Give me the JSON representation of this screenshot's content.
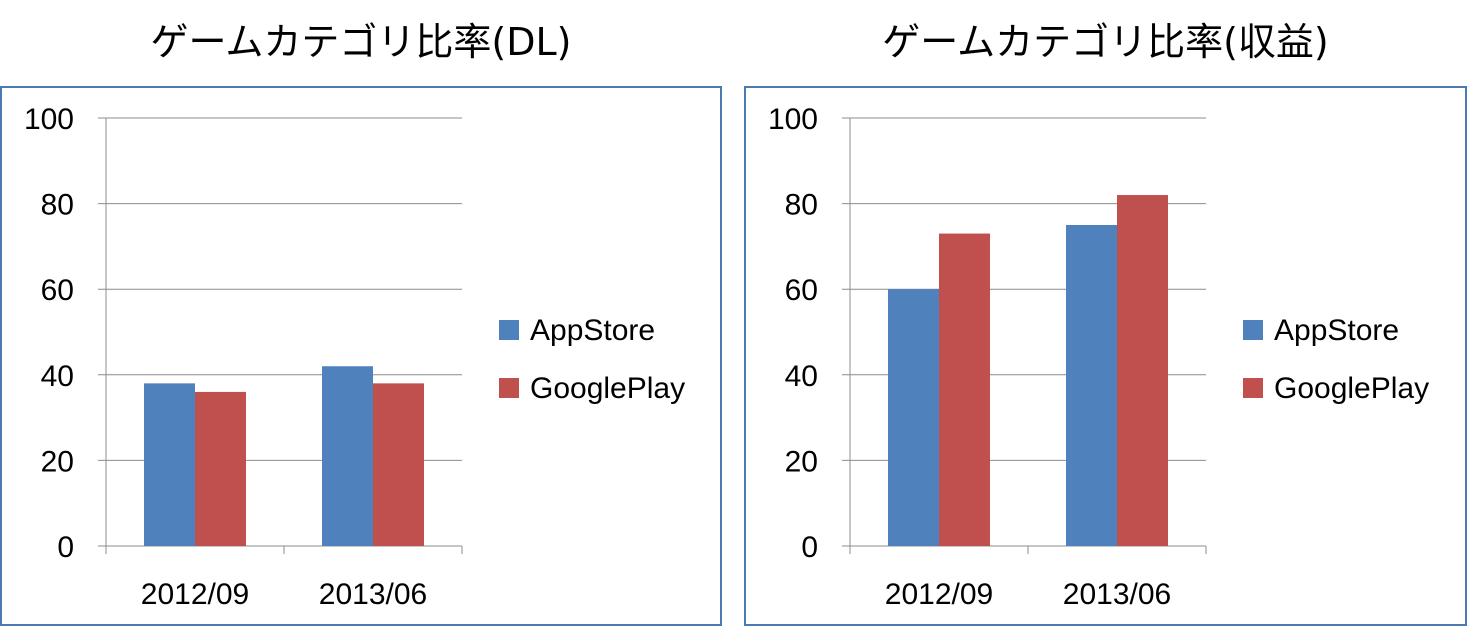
{
  "chart_data": [
    {
      "type": "bar",
      "title": "ゲームカテゴリ比率(DL)",
      "categories": [
        "2012/09",
        "2013/06"
      ],
      "series": [
        {
          "name": "AppStore",
          "color": "#4f81bd",
          "values": [
            38,
            42
          ]
        },
        {
          "name": "GooglePlay",
          "color": "#c0504d",
          "values": [
            36,
            38
          ]
        }
      ],
      "ylim": [
        0,
        100
      ],
      "yticks": [
        "0",
        "20",
        "40",
        "60",
        "80",
        "100"
      ],
      "grid": true,
      "legend": "right"
    },
    {
      "type": "bar",
      "title": "ゲームカテゴリ比率(収益)",
      "categories": [
        "2012/09",
        "2013/06"
      ],
      "series": [
        {
          "name": "AppStore",
          "color": "#4f81bd",
          "values": [
            60,
            75
          ]
        },
        {
          "name": "GooglePlay",
          "color": "#c0504d",
          "values": [
            73,
            82
          ]
        }
      ],
      "ylim": [
        0,
        100
      ],
      "yticks": [
        "0",
        "20",
        "40",
        "60",
        "80",
        "100"
      ],
      "grid": true,
      "legend": "right"
    }
  ]
}
